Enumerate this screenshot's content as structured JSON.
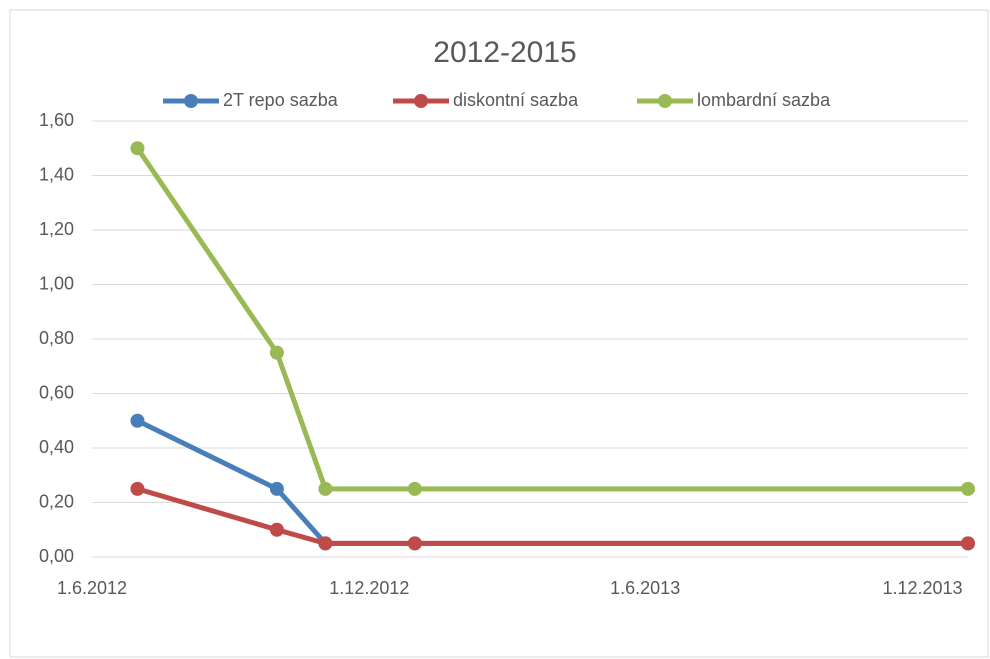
{
  "chart_data": {
    "type": "line",
    "title": "2012-2015",
    "x": [
      "2012-07-01",
      "2012-10-01",
      "2012-11-02",
      "2012-12-31",
      "2013-12-31"
    ],
    "series": [
      {
        "name": "2T repo sazba",
        "color": "#4a7ebb",
        "values": [
          0.5,
          0.25,
          0.05,
          0.05,
          0.05
        ]
      },
      {
        "name": "diskontní sazba",
        "color": "#be4b48",
        "values": [
          0.25,
          0.1,
          0.05,
          0.05,
          0.05
        ]
      },
      {
        "name": "lombardní sazba",
        "color": "#98b954",
        "values": [
          1.5,
          0.75,
          0.25,
          0.25,
          0.25
        ]
      }
    ],
    "xlim": [
      "2012-06-01",
      "2013-12-31"
    ],
    "xticks": [
      {
        "value": "2012-06-01",
        "label": "1.6.2012"
      },
      {
        "value": "2012-12-01",
        "label": "1.12.2012"
      },
      {
        "value": "2013-06-01",
        "label": "1.6.2013"
      },
      {
        "value": "2013-12-01",
        "label": "1.12.2013"
      }
    ],
    "ylim": [
      0,
      1.6
    ],
    "yticks": [
      {
        "value": 0,
        "label": "0,00"
      },
      {
        "value": 0.2,
        "label": "0,20"
      },
      {
        "value": 0.4,
        "label": "0,40"
      },
      {
        "value": 0.6,
        "label": "0,60"
      },
      {
        "value": 0.8,
        "label": "0,80"
      },
      {
        "value": 1.0,
        "label": "1,00"
      },
      {
        "value": 1.2,
        "label": "1,20"
      },
      {
        "value": 1.4,
        "label": "1,40"
      },
      {
        "value": 1.6,
        "label": "1,60"
      }
    ],
    "grid": true,
    "legend": "top"
  }
}
